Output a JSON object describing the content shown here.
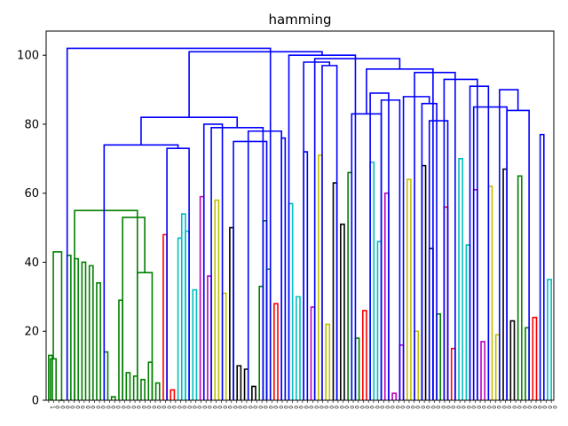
{
  "chart_data": {
    "type": "dendrogram",
    "title": "hamming",
    "ylim": [
      0,
      107
    ],
    "yticks": [
      0,
      20,
      40,
      60,
      80,
      100
    ],
    "leaf_labels": [
      "1",
      "0",
      "0",
      "0",
      "0",
      "0",
      "0",
      "0",
      "0",
      "0",
      "0",
      "0",
      "0",
      "0",
      "0",
      "0",
      "0",
      "0",
      "0",
      "0",
      "0",
      "0",
      "0",
      "0",
      "0",
      "0",
      "0",
      "0",
      "0",
      "0",
      "0",
      "0",
      "0",
      "0",
      "0",
      "0",
      "0",
      "0",
      "0",
      "0",
      "0",
      "0",
      "0",
      "0",
      "0",
      "0",
      "0",
      "0",
      "0",
      "0",
      "0",
      "0",
      "0",
      "0",
      "0",
      "0",
      "0",
      "0",
      "0",
      "0",
      "0",
      "0",
      "0",
      "0",
      "0",
      "0",
      "0",
      "0",
      "0",
      "0",
      "0",
      "0",
      "0",
      "0",
      "0",
      "0",
      "0",
      "0",
      "0",
      "0",
      "0",
      "0",
      "0",
      "0",
      "0",
      "0",
      "0",
      "0",
      "0",
      "0",
      "0",
      "0",
      "0",
      "0",
      "0",
      "0",
      "0",
      "0",
      "0",
      "0"
    ],
    "colors": {
      "green": "#008000",
      "red": "#ff0000",
      "cyan": "#00bfbf",
      "magenta": "#bf00bf",
      "yellow": "#bfbf00",
      "black": "#000000",
      "blue": "#0000ff"
    },
    "links": [
      {
        "l": 0,
        "r": 1,
        "h": 13,
        "c": "green"
      },
      {
        "l": 0.5,
        "r": 2,
        "h": 12,
        "c": "green"
      },
      {
        "l": 3,
        "r": 4,
        "h": 0,
        "c": "green"
      },
      {
        "l": 1.25,
        "r": 3.5,
        "h": 43,
        "c": "green"
      },
      {
        "l": 5,
        "r": 6,
        "h": 42,
        "c": "green"
      },
      {
        "l": 7,
        "r": 8,
        "h": 41,
        "c": "green"
      },
      {
        "l": 9,
        "r": 10,
        "h": 40,
        "c": "green"
      },
      {
        "l": 11,
        "r": 12,
        "h": 39,
        "c": "green"
      },
      {
        "l": 13,
        "r": 14,
        "h": 34,
        "c": "green"
      },
      {
        "l": 15,
        "r": 16,
        "h": 14,
        "c": "green"
      },
      {
        "l": 17,
        "r": 18,
        "h": 1,
        "c": "green"
      },
      {
        "l": 19,
        "r": 20,
        "h": 29,
        "c": "green"
      },
      {
        "l": 21,
        "r": 22,
        "h": 8,
        "c": "green"
      },
      {
        "l": 23,
        "r": 24,
        "h": 7,
        "c": "green"
      },
      {
        "l": 25,
        "r": 26,
        "h": 6,
        "c": "green"
      },
      {
        "l": 27,
        "r": 28,
        "h": 11,
        "c": "green"
      },
      {
        "l": 29,
        "r": 30,
        "h": 5,
        "c": "green"
      },
      {
        "l": 24,
        "r": 28,
        "h": 37,
        "c": "green"
      },
      {
        "l": 20,
        "r": 26,
        "h": 53,
        "c": "green"
      },
      {
        "l": 7,
        "r": 24,
        "h": 55,
        "c": "green"
      },
      {
        "l": 31,
        "r": 32,
        "h": 48,
        "c": "red"
      },
      {
        "l": 33,
        "r": 34,
        "h": 3,
        "c": "red"
      },
      {
        "l": 35,
        "r": 36,
        "h": 47,
        "c": "cyan"
      },
      {
        "l": 36,
        "r": 37,
        "h": 54,
        "c": "cyan"
      },
      {
        "l": 37,
        "r": 38,
        "h": 49,
        "c": "cyan"
      },
      {
        "l": 39,
        "r": 40,
        "h": 32,
        "c": "cyan"
      },
      {
        "l": 41,
        "r": 42,
        "h": 59,
        "c": "magenta"
      },
      {
        "l": 43,
        "r": 44,
        "h": 36,
        "c": "magenta"
      },
      {
        "l": 45,
        "r": 46,
        "h": 58,
        "c": "yellow"
      },
      {
        "l": 47,
        "r": 48,
        "h": 31,
        "c": "yellow"
      },
      {
        "l": 49,
        "r": 50,
        "h": 50,
        "c": "black"
      },
      {
        "l": 51,
        "r": 52,
        "h": 10,
        "c": "black"
      },
      {
        "l": 53,
        "r": 54,
        "h": 9,
        "c": "black"
      },
      {
        "l": 55,
        "r": 56,
        "h": 4,
        "c": "black"
      },
      {
        "l": 57,
        "r": 58,
        "h": 33,
        "c": "green"
      },
      {
        "l": 58,
        "r": 59,
        "h": 52,
        "c": "green"
      },
      {
        "l": 59,
        "r": 60,
        "h": 38,
        "c": "green"
      },
      {
        "l": 61,
        "r": 62,
        "h": 28,
        "c": "red"
      },
      {
        "l": 63,
        "r": 64,
        "h": 76,
        "c": "blue"
      },
      {
        "l": 65,
        "r": 66,
        "h": 57,
        "c": "cyan"
      },
      {
        "l": 67,
        "r": 68,
        "h": 30,
        "c": "cyan"
      },
      {
        "l": 69,
        "r": 70,
        "h": 72,
        "c": "blue"
      },
      {
        "l": 71,
        "r": 72,
        "h": 27,
        "c": "magenta"
      },
      {
        "l": 73,
        "r": 74,
        "h": 71,
        "c": "yellow"
      },
      {
        "l": 75,
        "r": 76,
        "h": 22,
        "c": "yellow"
      },
      {
        "l": 77,
        "r": 78,
        "h": 63,
        "c": "black"
      },
      {
        "l": 79,
        "r": 80,
        "h": 51,
        "c": "black"
      },
      {
        "l": 81,
        "r": 82,
        "h": 66,
        "c": "green"
      },
      {
        "l": 83,
        "r": 84,
        "h": 18,
        "c": "green"
      },
      {
        "l": 85,
        "r": 86,
        "h": 26,
        "c": "red"
      },
      {
        "l": 87,
        "r": 88,
        "h": 69,
        "c": "cyan"
      },
      {
        "l": 89,
        "r": 90,
        "h": 46,
        "c": "cyan"
      },
      {
        "l": 91,
        "r": 92,
        "h": 60,
        "c": "magenta"
      },
      {
        "l": 93,
        "r": 94,
        "h": 2,
        "c": "magenta"
      },
      {
        "l": 95,
        "r": 96,
        "h": 16,
        "c": "magenta"
      },
      {
        "l": 97,
        "r": 98,
        "h": 64,
        "c": "yellow"
      },
      {
        "l": 99,
        "r": 100,
        "h": 20,
        "c": "yellow"
      },
      {
        "l": 101,
        "r": 102,
        "h": 68,
        "c": "black"
      },
      {
        "l": 103,
        "r": 104,
        "h": 44,
        "c": "black"
      },
      {
        "l": 105,
        "r": 106,
        "h": 25,
        "c": "green"
      },
      {
        "l": 107,
        "r": 108,
        "h": 56,
        "c": "red"
      },
      {
        "l": 109,
        "r": 110,
        "h": 15,
        "c": "red"
      },
      {
        "l": 111,
        "r": 112,
        "h": 70,
        "c": "cyan"
      },
      {
        "l": 113,
        "r": 114,
        "h": 45,
        "c": "cyan"
      },
      {
        "l": 115,
        "r": 116,
        "h": 61,
        "c": "magenta"
      },
      {
        "l": 117,
        "r": 118,
        "h": 17,
        "c": "magenta"
      },
      {
        "l": 119,
        "r": 120,
        "h": 62,
        "c": "yellow"
      },
      {
        "l": 121,
        "r": 122,
        "h": 19,
        "c": "yellow"
      },
      {
        "l": 123,
        "r": 124,
        "h": 67,
        "c": "black"
      },
      {
        "l": 125,
        "r": 126,
        "h": 23,
        "c": "black"
      },
      {
        "l": 127,
        "r": 128,
        "h": 65,
        "c": "green"
      },
      {
        "l": 129,
        "r": 130,
        "h": 21,
        "c": "green"
      },
      {
        "l": 131,
        "r": 132,
        "h": 24,
        "c": "red"
      },
      {
        "l": 133,
        "r": 134,
        "h": 77,
        "c": "blue"
      },
      {
        "l": 135,
        "r": 136,
        "h": 35,
        "c": "cyan"
      },
      {
        "l": 32,
        "r": 38,
        "h": 73,
        "c": "blue"
      },
      {
        "l": 15,
        "r": 35,
        "h": 74,
        "c": "blue"
      },
      {
        "l": 42,
        "r": 47,
        "h": 80,
        "c": "blue"
      },
      {
        "l": 50,
        "r": 59,
        "h": 75,
        "c": "blue"
      },
      {
        "l": 54,
        "r": 63,
        "h": 78,
        "c": "blue"
      },
      {
        "l": 44,
        "r": 58,
        "h": 79,
        "c": "blue"
      },
      {
        "l": 25,
        "r": 51,
        "h": 82,
        "c": "blue"
      },
      {
        "l": 74,
        "r": 78,
        "h": 97,
        "c": "blue"
      },
      {
        "l": 69,
        "r": 76,
        "h": 98,
        "c": "blue"
      },
      {
        "l": 90,
        "r": 95,
        "h": 87,
        "c": "blue"
      },
      {
        "l": 87,
        "r": 92,
        "h": 89,
        "c": "blue"
      },
      {
        "l": 103,
        "r": 108,
        "h": 81,
        "c": "blue"
      },
      {
        "l": 101,
        "r": 105,
        "h": 86,
        "c": "blue"
      },
      {
        "l": 96,
        "r": 103,
        "h": 88,
        "c": "blue"
      },
      {
        "l": 124,
        "r": 130,
        "h": 84,
        "c": "blue"
      },
      {
        "l": 122,
        "r": 127,
        "h": 90,
        "c": "blue"
      },
      {
        "l": 115,
        "r": 124,
        "h": 85,
        "c": "blue"
      },
      {
        "l": 114,
        "r": 119,
        "h": 91,
        "c": "blue"
      },
      {
        "l": 107,
        "r": 116,
        "h": 93,
        "c": "blue"
      },
      {
        "l": 99,
        "r": 110,
        "h": 95,
        "c": "blue"
      },
      {
        "l": 82,
        "r": 90,
        "h": 83,
        "c": "blue"
      },
      {
        "l": 86,
        "r": 104,
        "h": 96,
        "c": "blue"
      },
      {
        "l": 72,
        "r": 95,
        "h": 99,
        "c": "blue"
      },
      {
        "l": 65,
        "r": 83,
        "h": 100,
        "c": "blue"
      },
      {
        "l": 38,
        "r": 74,
        "h": 101,
        "c": "blue"
      },
      {
        "l": 5,
        "r": 60,
        "h": 102,
        "c": "blue"
      }
    ]
  }
}
